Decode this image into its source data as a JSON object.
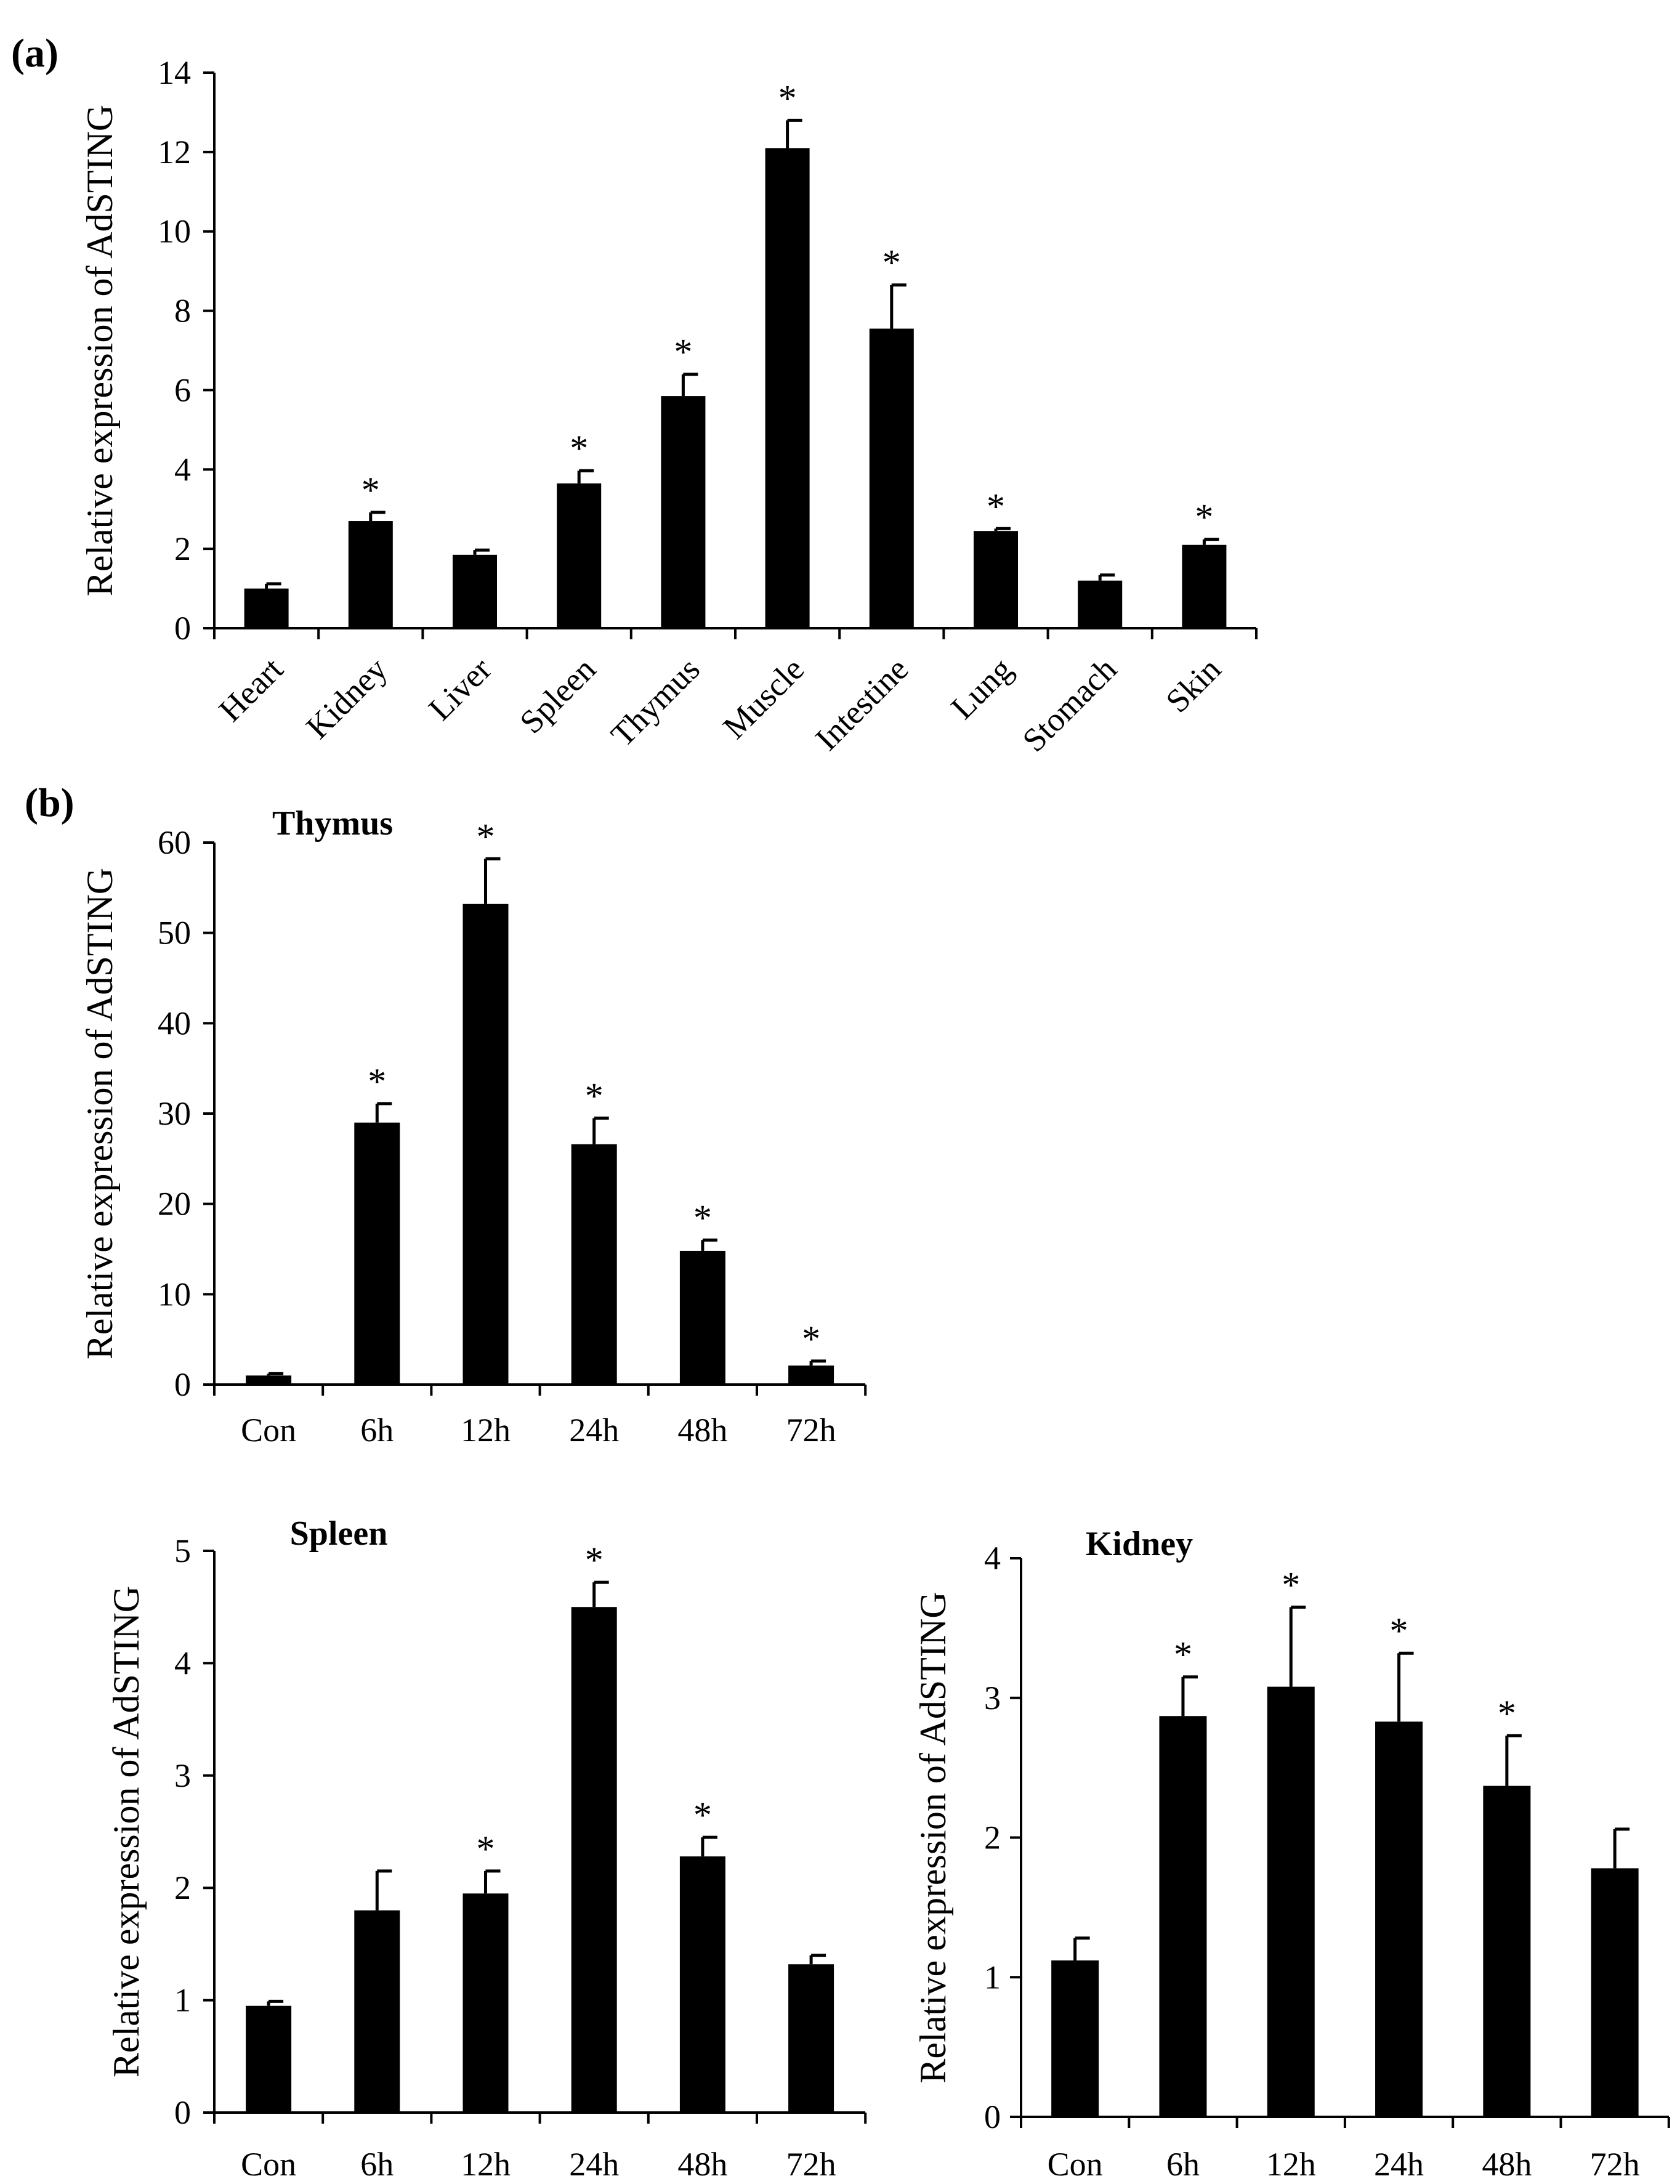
{
  "panels": {
    "a": "(a)",
    "b": "(b)"
  },
  "chart_data": [
    {
      "id": "tissues",
      "type": "bar",
      "title": "",
      "xlabel": "",
      "ylabel": "Relative expression of AdSTING",
      "ylim": [
        0,
        14
      ],
      "yticks": [
        0,
        2,
        4,
        6,
        8,
        10,
        12,
        14
      ],
      "grid": false,
      "categories": [
        "Heart",
        "Kidney",
        "Liver",
        "Spleen",
        "Thymus",
        "Muscle",
        "Intestine",
        "Lung",
        "Stomach",
        "Skin"
      ],
      "values": [
        1.0,
        2.7,
        1.85,
        3.65,
        5.85,
        12.1,
        7.55,
        2.45,
        1.2,
        2.1
      ],
      "errors": [
        0.12,
        0.22,
        0.12,
        0.32,
        0.55,
        0.7,
        1.1,
        0.06,
        0.14,
        0.14
      ],
      "significance": [
        "",
        "*",
        "",
        "*",
        "*",
        "*",
        "*",
        "*",
        "",
        "*"
      ],
      "bar_color": "#000000"
    },
    {
      "id": "thymus",
      "type": "bar",
      "title": "Thymus",
      "xlabel": "",
      "ylabel": "Relative expression of AdSTING",
      "ylim": [
        0,
        60
      ],
      "yticks": [
        0,
        10,
        20,
        30,
        40,
        50,
        60
      ],
      "grid": false,
      "categories": [
        "Con",
        "6h",
        "12h",
        "24h",
        "48h",
        "72h"
      ],
      "values": [
        1.0,
        29.0,
        53.2,
        26.6,
        14.8,
        2.1
      ],
      "errors": [
        0.2,
        2.1,
        5.0,
        2.9,
        1.2,
        0.5
      ],
      "significance": [
        "",
        "*",
        "*",
        "*",
        "*",
        "*"
      ],
      "bar_color": "#000000"
    },
    {
      "id": "spleen",
      "type": "bar",
      "title": "Spleen",
      "xlabel": "",
      "ylabel": "Relative expression of AdSTING",
      "ylim": [
        0,
        5
      ],
      "yticks": [
        0,
        1,
        2,
        3,
        4,
        5
      ],
      "grid": false,
      "categories": [
        "Con",
        "6h",
        "12h",
        "24h",
        "48h",
        "72h"
      ],
      "values": [
        0.95,
        1.8,
        1.95,
        4.5,
        2.28,
        1.32
      ],
      "errors": [
        0.04,
        0.35,
        0.2,
        0.22,
        0.17,
        0.08
      ],
      "significance": [
        "",
        "",
        "*",
        "*",
        "*",
        ""
      ],
      "bar_color": "#000000"
    },
    {
      "id": "kidney",
      "type": "bar",
      "title": "Kidney",
      "xlabel": "",
      "ylabel": "Relative expression of AdSTING",
      "ylim": [
        0,
        4
      ],
      "yticks": [
        0,
        1,
        2,
        3,
        4
      ],
      "grid": false,
      "categories": [
        "Con",
        "6h",
        "12h",
        "24h",
        "48h",
        "72h"
      ],
      "values": [
        1.12,
        2.87,
        3.08,
        2.83,
        2.37,
        1.78
      ],
      "errors": [
        0.16,
        0.28,
        0.57,
        0.49,
        0.36,
        0.28
      ],
      "significance": [
        "",
        "*",
        "*",
        "*",
        "*",
        ""
      ],
      "bar_color": "#000000"
    }
  ]
}
